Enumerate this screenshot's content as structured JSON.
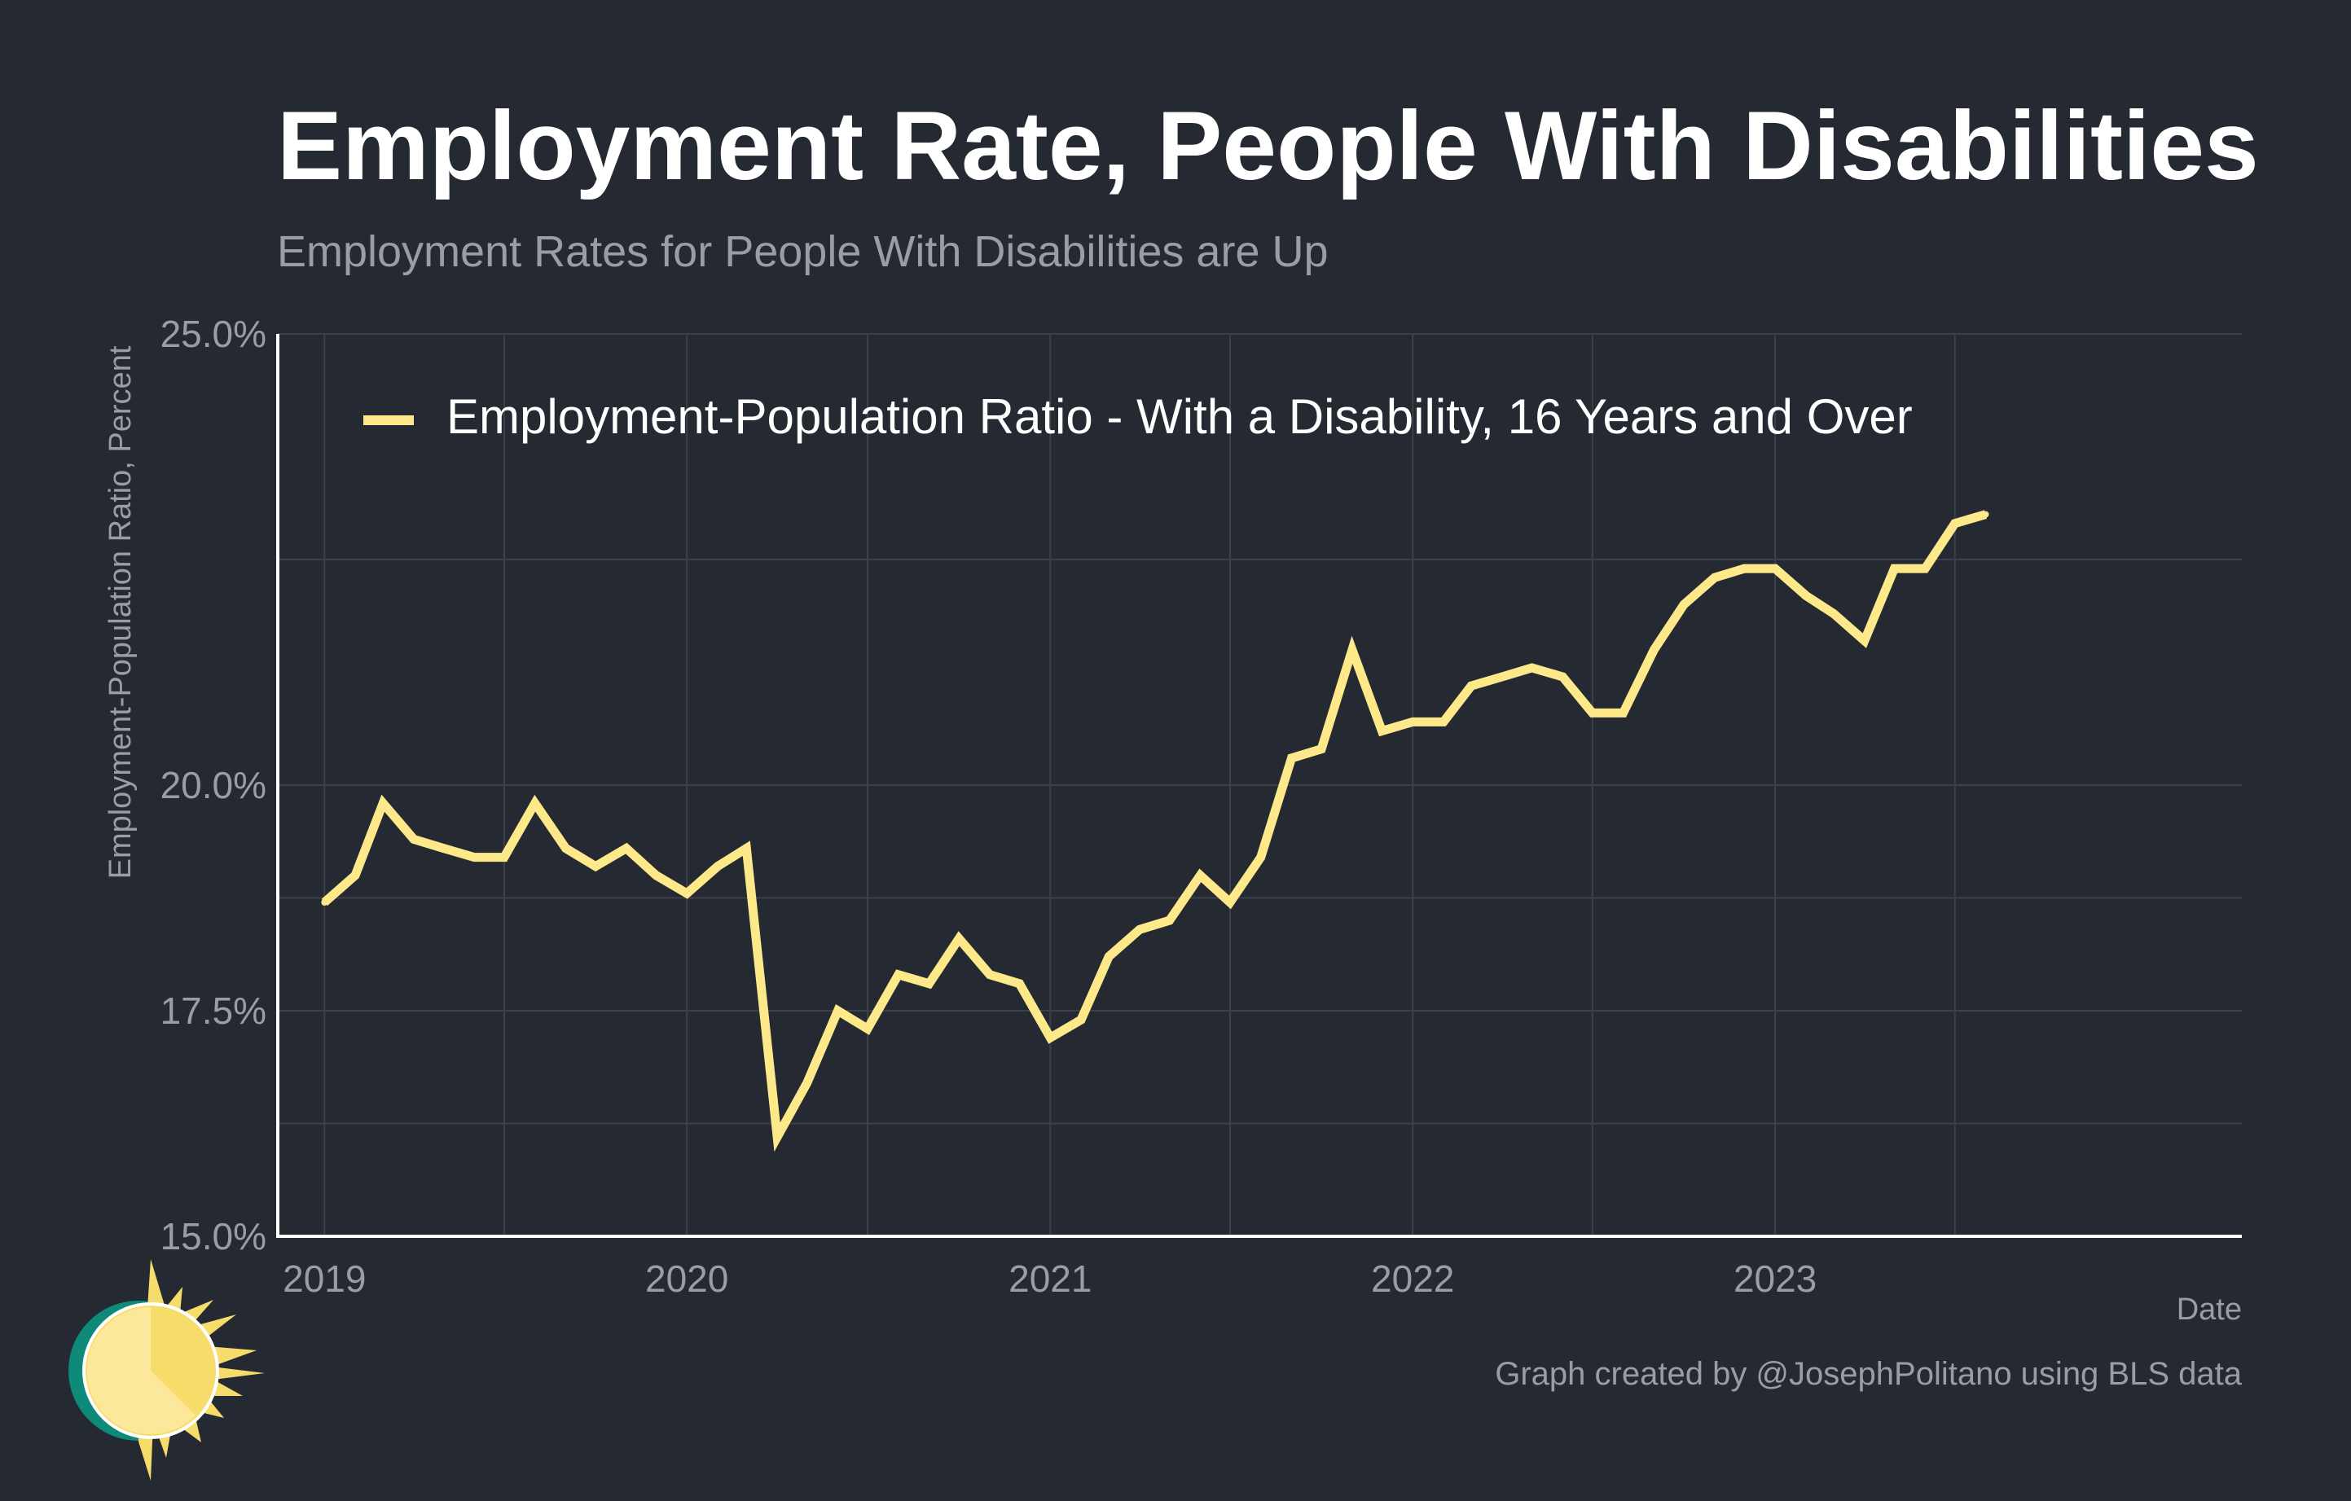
{
  "colors": {
    "background": "#252932",
    "title": "#ffffff",
    "muted": "#9a9da3",
    "grid": "#3c4049",
    "axis": "#ffffff",
    "series": "#fde98a",
    "logo_teal": "#0e8a7a",
    "logo_sun": "#f6dd6b",
    "logo_face": "#fbe89a"
  },
  "chart_data": {
    "type": "line",
    "title": "Employment Rate, People With Disabilities",
    "subtitle": "Employment Rates for People With Disabilities are Up",
    "xlabel": "Date",
    "ylabel": "Employment-Population Ratio, Percent",
    "caption": "Graph created by @JosephPolitano using BLS data",
    "ylim": [
      15.0,
      25.0
    ],
    "y_ticks": [
      "15.0%",
      "17.5%",
      "20.0%",
      "25.0%"
    ],
    "y_tick_values": [
      15.0,
      17.5,
      20.0,
      25.0
    ],
    "y_minor_gridlines": [
      16.25,
      18.75,
      22.5
    ],
    "xlim": [
      "2018-11-15",
      "2024-04-15"
    ],
    "x_ticks": [
      "2019",
      "2020",
      "2021",
      "2022",
      "2023"
    ],
    "x_tick_dates": [
      "2019-01-01",
      "2020-01-01",
      "2021-01-01",
      "2022-01-01",
      "2023-01-01"
    ],
    "x_minor_gridlines": [
      "2019-07-01",
      "2020-07-01",
      "2021-07-01",
      "2022-07-01",
      "2023-07-01"
    ],
    "grid": true,
    "legend_position": "top-left",
    "series": [
      {
        "name": "Employment-Population Ratio - With a Disability, 16 Years and Over",
        "x": [
          "2019-01",
          "2019-02",
          "2019-03",
          "2019-04",
          "2019-05",
          "2019-06",
          "2019-07",
          "2019-08",
          "2019-09",
          "2019-10",
          "2019-11",
          "2019-12",
          "2020-01",
          "2020-02",
          "2020-03",
          "2020-04",
          "2020-05",
          "2020-06",
          "2020-07",
          "2020-08",
          "2020-09",
          "2020-10",
          "2020-11",
          "2020-12",
          "2021-01",
          "2021-02",
          "2021-03",
          "2021-04",
          "2021-05",
          "2021-06",
          "2021-07",
          "2021-08",
          "2021-09",
          "2021-10",
          "2021-11",
          "2021-12",
          "2022-01",
          "2022-02",
          "2022-03",
          "2022-04",
          "2022-05",
          "2022-06",
          "2022-07",
          "2022-08",
          "2022-09",
          "2022-10",
          "2022-11",
          "2022-12",
          "2023-01",
          "2023-02",
          "2023-03",
          "2023-04",
          "2023-05",
          "2023-06",
          "2023-07",
          "2023-08"
        ],
        "values": [
          18.7,
          19.0,
          19.8,
          19.4,
          19.3,
          19.2,
          19.2,
          19.8,
          19.3,
          19.1,
          19.3,
          19.0,
          18.8,
          19.1,
          19.3,
          16.1,
          16.7,
          17.5,
          17.3,
          17.9,
          17.8,
          18.3,
          17.9,
          17.8,
          17.2,
          17.4,
          18.1,
          18.4,
          18.5,
          19.0,
          18.7,
          19.2,
          20.3,
          20.4,
          21.5,
          20.6,
          20.7,
          20.7,
          21.1,
          21.2,
          21.3,
          21.2,
          20.8,
          20.8,
          21.5,
          22.0,
          22.3,
          22.4,
          22.4,
          22.1,
          21.9,
          21.6,
          22.4,
          22.4,
          22.9,
          23.0
        ]
      }
    ]
  }
}
